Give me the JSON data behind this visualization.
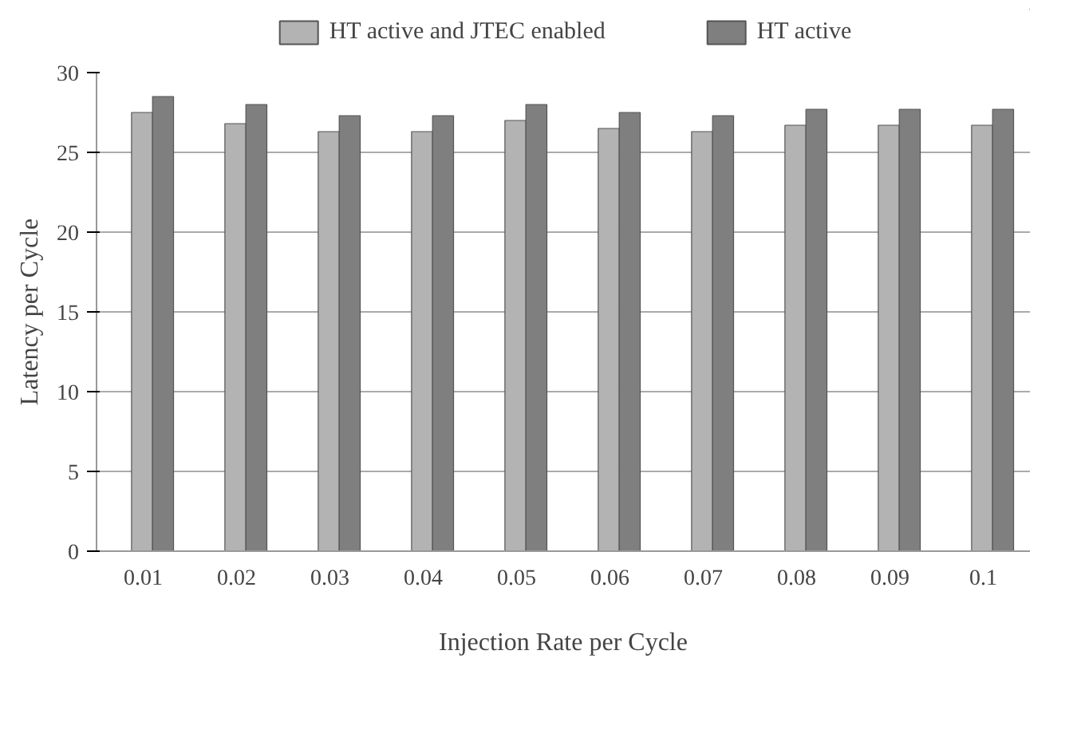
{
  "chart_data": {
    "type": "bar",
    "xlabel": "Injection Rate per Cycle",
    "ylabel": "Latency per Cycle",
    "categories": [
      "0.01",
      "0.02",
      "0.03",
      "0.04",
      "0.05",
      "0.06",
      "0.07",
      "0.08",
      "0.09",
      "0.1"
    ],
    "series": [
      {
        "name": "HT active and JTEC enabled",
        "color": "#b3b3b3",
        "values": [
          27.5,
          26.8,
          26.3,
          26.3,
          27.0,
          26.5,
          26.3,
          26.7,
          26.7,
          26.7
        ]
      },
      {
        "name": "HT active",
        "color": "#7f7f7f",
        "values": [
          28.5,
          28.0,
          27.3,
          27.3,
          28.0,
          27.5,
          27.3,
          27.7,
          27.7,
          27.7
        ]
      }
    ],
    "ylim": [
      0,
      30
    ],
    "yticks": [
      0,
      5,
      10,
      15,
      20,
      25,
      30
    ],
    "grid": "y",
    "legend": "top"
  }
}
